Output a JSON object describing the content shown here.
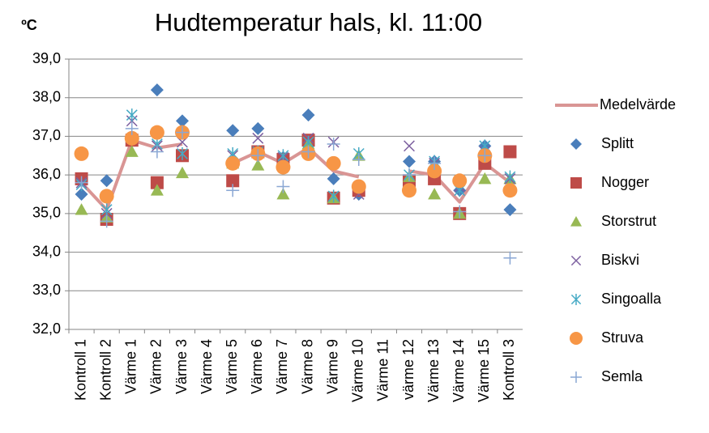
{
  "chart_data": {
    "type": "line",
    "title": "Hudtemperatur hals, kl. 11:00",
    "ylabel": "ºC",
    "categories": [
      "Kontroll 1",
      "Kontroll 2",
      "Värme 1",
      "Värme 2",
      "Värme 3",
      "Värme 4",
      "Värme 5",
      "Värme 6",
      "Värme 7",
      "Värme 8",
      "Värme 9",
      "Värme 10",
      "Värme 11",
      "värme 12",
      "Värme 13",
      "Värme 14",
      "Värme 15",
      "Kontroll 3"
    ],
    "ylim": [
      32,
      39
    ],
    "yticks": [
      {
        "value": 32,
        "label": "32,0"
      },
      {
        "value": 33,
        "label": "33,0"
      },
      {
        "value": 34,
        "label": "34,0"
      },
      {
        "value": 35,
        "label": "35,0"
      },
      {
        "value": 36,
        "label": "36,0"
      },
      {
        "value": 37,
        "label": "37,0"
      },
      {
        "value": 38,
        "label": "38,0"
      },
      {
        "value": 39,
        "label": "39,0"
      }
    ],
    "grid": true,
    "legend": "right",
    "series": [
      {
        "name": "Medelvärde",
        "color": "#d99594",
        "line": true,
        "values": [
          35.8,
          35.1,
          36.9,
          36.7,
          36.8,
          null,
          36.3,
          36.6,
          36.3,
          36.7,
          36.1,
          35.95,
          null,
          36.1,
          36.0,
          35.3,
          36.3,
          35.8
        ]
      },
      {
        "name": "Splitt",
        "color": "#4a7ebb",
        "marker": "diamond",
        "values": [
          35.5,
          35.85,
          36.9,
          38.2,
          37.4,
          null,
          37.15,
          37.2,
          36.45,
          37.55,
          35.9,
          35.5,
          null,
          36.35,
          36.35,
          35.6,
          36.75,
          35.1
        ]
      },
      {
        "name": "Nogger",
        "color": "#be4b48",
        "marker": "square",
        "values": [
          35.9,
          34.85,
          36.9,
          35.8,
          36.5,
          null,
          35.85,
          36.6,
          36.4,
          36.9,
          35.4,
          35.6,
          null,
          35.85,
          35.9,
          35.0,
          36.3,
          36.6
        ]
      },
      {
        "name": "Storstrut",
        "color": "#98b954",
        "marker": "triangle",
        "values": [
          35.1,
          34.9,
          36.6,
          35.6,
          36.05,
          null,
          36.3,
          36.25,
          35.5,
          36.8,
          35.4,
          36.5,
          null,
          35.95,
          35.5,
          35.0,
          35.9,
          35.9
        ]
      },
      {
        "name": "Biskvi",
        "color": "#7d60a0",
        "marker": "x",
        "values": [
          35.8,
          35.0,
          37.4,
          36.75,
          36.85,
          null,
          36.5,
          36.95,
          36.45,
          36.95,
          36.85,
          35.5,
          null,
          36.75,
          36.3,
          35.7,
          36.6,
          35.9
        ]
      },
      {
        "name": "Singoalla",
        "color": "#46aac5",
        "marker": "asterisk",
        "values": [
          35.75,
          35.1,
          37.55,
          36.8,
          36.55,
          null,
          36.55,
          36.6,
          36.5,
          36.85,
          35.45,
          36.55,
          null,
          36.0,
          36.35,
          35.6,
          36.75,
          35.95
        ]
      },
      {
        "name": "Struva",
        "color": "#f79646",
        "marker": "circle",
        "values": [
          36.55,
          35.45,
          36.95,
          37.1,
          37.1,
          null,
          36.3,
          36.55,
          36.2,
          36.55,
          36.3,
          35.7,
          null,
          35.6,
          36.1,
          35.85,
          36.5,
          35.6
        ]
      },
      {
        "name": "Semla",
        "color": "#8aa7d4",
        "marker": "plus",
        "values": [
          35.8,
          34.8,
          37.2,
          36.6,
          37.1,
          null,
          35.6,
          36.5,
          35.7,
          36.6,
          36.8,
          36.4,
          null,
          36.0,
          36.3,
          35.05,
          36.5,
          33.85
        ]
      }
    ]
  }
}
